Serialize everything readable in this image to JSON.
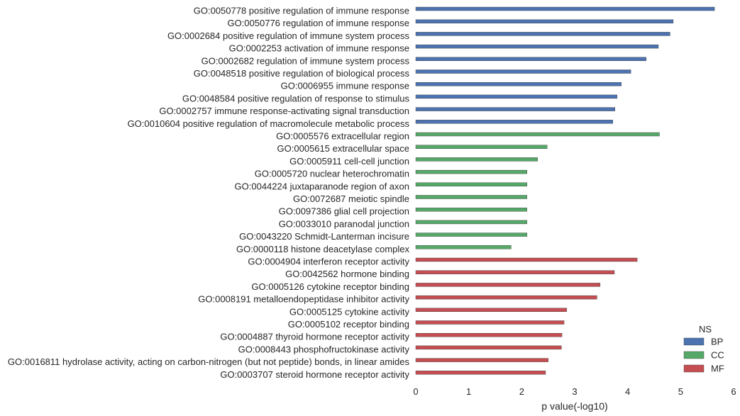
{
  "chart_data": {
    "type": "bar",
    "orientation": "horizontal",
    "title": "",
    "xlabel": "p value(-log10)",
    "ylabel": "",
    "xlim": [
      0,
      6
    ],
    "xticks": [
      "0",
      "1",
      "2",
      "3",
      "4",
      "5",
      "6"
    ],
    "grid": false,
    "legend": {
      "title": "NS",
      "placement": "bottom-right",
      "entries": [
        {
          "name": "BP",
          "color": "#4c72b0"
        },
        {
          "name": "CC",
          "color": "#55a868"
        },
        {
          "name": "MF",
          "color": "#c44e52"
        }
      ]
    },
    "series": [
      {
        "name": "BP",
        "color": "#4c72b0",
        "categories": [
          "GO:0050778 positive regulation of immune response",
          "GO:0050776 regulation of immune response",
          "GO:0002684 positive regulation of immune system process",
          "GO:0002253 activation of immune response",
          "GO:0002682 regulation of immune system process",
          "GO:0048518 positive regulation of biological process",
          "GO:0006955 immune response",
          "GO:0048584 positive regulation of response to stimulus",
          "GO:0002757 immune response-activating signal transduction",
          "GO:0010604 positive regulation of macromolecule metabolic process"
        ],
        "values": [
          5.64,
          4.86,
          4.8,
          4.58,
          4.35,
          4.06,
          3.88,
          3.8,
          3.76,
          3.72
        ]
      },
      {
        "name": "CC",
        "color": "#55a868",
        "categories": [
          "GO:0005576 extracellular region",
          "GO:0005615 extracellular space",
          "GO:0005911 cell-cell junction",
          "GO:0005720 nuclear heterochromatin",
          "GO:0044224 juxtaparanode region of axon",
          "GO:0072687 meiotic spindle",
          "GO:0097386 glial cell projection",
          "GO:0033010 paranodal junction",
          "GO:0043220 Schmidt-Lanterman incisure",
          "GO:0000118 histone deacetylase complex"
        ],
        "values": [
          4.6,
          2.48,
          2.3,
          2.1,
          2.1,
          2.1,
          2.1,
          2.1,
          2.1,
          1.8
        ]
      },
      {
        "name": "MF",
        "color": "#c44e52",
        "categories": [
          "GO:0004904 interferon receptor activity",
          "GO:0042562 hormone binding",
          "GO:0005126 cytokine receptor binding",
          "GO:0008191 metalloendopeptidase inhibitor activity",
          "GO:0005125 cytokine activity",
          "GO:0005102 receptor binding",
          "GO:0004887 thyroid hormone receptor activity",
          "GO:0008443 phosphofructokinase activity",
          "GO:0016811 hydrolase activity, acting on carbon-nitrogen (but not peptide) bonds, in linear amides",
          "GO:0003707 steroid hormone receptor activity"
        ],
        "values": [
          4.18,
          3.75,
          3.48,
          3.42,
          2.85,
          2.8,
          2.76,
          2.75,
          2.5,
          2.45
        ]
      }
    ]
  }
}
